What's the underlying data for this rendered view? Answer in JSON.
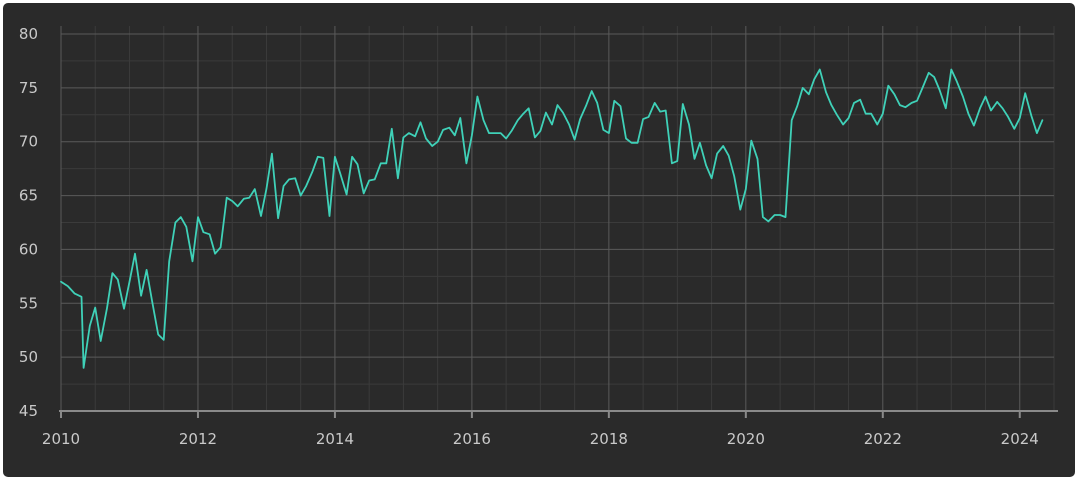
{
  "colors": {
    "background": "#2a2a2a",
    "line": "#3fd1b8",
    "grid": "#5a5a5a",
    "grid_minor": "#3b3b3b",
    "axis": "#8a8a8a",
    "text": "#c9c9c9"
  },
  "chart_data": {
    "type": "line",
    "title": "",
    "xlabel": "",
    "ylabel": "",
    "grid": true,
    "legend": "none",
    "xlim": [
      2010,
      2024.5
    ],
    "ylim": [
      45,
      80
    ],
    "x_ticks": [
      {
        "value": 2010,
        "label": "2010"
      },
      {
        "value": 2012,
        "label": "2012"
      },
      {
        "value": 2014,
        "label": "2014"
      },
      {
        "value": 2016,
        "label": "2016"
      },
      {
        "value": 2018,
        "label": "2018"
      },
      {
        "value": 2020,
        "label": "2020"
      },
      {
        "value": 2022,
        "label": "2022"
      },
      {
        "value": 2024,
        "label": "2024"
      }
    ],
    "y_ticks": [
      {
        "value": 45,
        "label": "45"
      },
      {
        "value": 50,
        "label": "50"
      },
      {
        "value": 55,
        "label": "55"
      },
      {
        "value": 60,
        "label": "60"
      },
      {
        "value": 65,
        "label": "65"
      },
      {
        "value": 70,
        "label": "70"
      },
      {
        "value": 75,
        "label": "75"
      },
      {
        "value": 80,
        "label": "80"
      }
    ],
    "series": [
      {
        "points": [
          [
            2010.0,
            57.0
          ],
          [
            2010.1,
            56.6
          ],
          [
            2010.2,
            55.9
          ],
          [
            2010.3,
            55.6
          ],
          [
            2010.33,
            49.0
          ],
          [
            2010.42,
            52.9
          ],
          [
            2010.5,
            54.6
          ],
          [
            2010.58,
            51.5
          ],
          [
            2010.67,
            54.5
          ],
          [
            2010.75,
            57.8
          ],
          [
            2010.83,
            57.2
          ],
          [
            2010.92,
            54.5
          ],
          [
            2011.0,
            57.0
          ],
          [
            2011.08,
            59.6
          ],
          [
            2011.17,
            55.7
          ],
          [
            2011.25,
            58.1
          ],
          [
            2011.33,
            55.2
          ],
          [
            2011.42,
            52.1
          ],
          [
            2011.5,
            51.6
          ],
          [
            2011.58,
            58.9
          ],
          [
            2011.67,
            62.5
          ],
          [
            2011.75,
            63.0
          ],
          [
            2011.83,
            62.1
          ],
          [
            2011.92,
            58.9
          ],
          [
            2012.0,
            63.0
          ],
          [
            2012.08,
            61.6
          ],
          [
            2012.17,
            61.4
          ],
          [
            2012.25,
            59.6
          ],
          [
            2012.33,
            60.2
          ],
          [
            2012.42,
            64.8
          ],
          [
            2012.5,
            64.5
          ],
          [
            2012.58,
            64.0
          ],
          [
            2012.67,
            64.7
          ],
          [
            2012.75,
            64.8
          ],
          [
            2012.83,
            65.6
          ],
          [
            2012.92,
            63.1
          ],
          [
            2013.0,
            65.6
          ],
          [
            2013.08,
            68.9
          ],
          [
            2013.17,
            62.9
          ],
          [
            2013.25,
            65.9
          ],
          [
            2013.33,
            66.5
          ],
          [
            2013.42,
            66.6
          ],
          [
            2013.5,
            65.0
          ],
          [
            2013.58,
            65.9
          ],
          [
            2013.67,
            67.2
          ],
          [
            2013.75,
            68.6
          ],
          [
            2013.83,
            68.5
          ],
          [
            2013.92,
            63.1
          ],
          [
            2014.0,
            68.6
          ],
          [
            2014.08,
            67.0
          ],
          [
            2014.17,
            65.1
          ],
          [
            2014.25,
            68.6
          ],
          [
            2014.33,
            67.9
          ],
          [
            2014.42,
            65.2
          ],
          [
            2014.5,
            66.4
          ],
          [
            2014.58,
            66.5
          ],
          [
            2014.67,
            68.0
          ],
          [
            2014.75,
            68.0
          ],
          [
            2014.83,
            71.2
          ],
          [
            2014.92,
            66.6
          ],
          [
            2015.0,
            70.4
          ],
          [
            2015.08,
            70.8
          ],
          [
            2015.17,
            70.5
          ],
          [
            2015.25,
            71.8
          ],
          [
            2015.33,
            70.3
          ],
          [
            2015.42,
            69.6
          ],
          [
            2015.5,
            70.0
          ],
          [
            2015.58,
            71.1
          ],
          [
            2015.67,
            71.3
          ],
          [
            2015.75,
            70.6
          ],
          [
            2015.83,
            72.2
          ],
          [
            2015.92,
            68.0
          ],
          [
            2016.0,
            70.6
          ],
          [
            2016.08,
            74.2
          ],
          [
            2016.17,
            72.0
          ],
          [
            2016.25,
            70.8
          ],
          [
            2016.33,
            70.8
          ],
          [
            2016.42,
            70.8
          ],
          [
            2016.5,
            70.3
          ],
          [
            2016.58,
            71.0
          ],
          [
            2016.67,
            72.0
          ],
          [
            2016.75,
            72.6
          ],
          [
            2016.83,
            73.1
          ],
          [
            2016.92,
            70.4
          ],
          [
            2017.0,
            71.0
          ],
          [
            2017.08,
            72.7
          ],
          [
            2017.17,
            71.6
          ],
          [
            2017.25,
            73.4
          ],
          [
            2017.33,
            72.7
          ],
          [
            2017.42,
            71.6
          ],
          [
            2017.5,
            70.2
          ],
          [
            2017.58,
            72.1
          ],
          [
            2017.67,
            73.4
          ],
          [
            2017.75,
            74.7
          ],
          [
            2017.83,
            73.6
          ],
          [
            2017.92,
            71.1
          ],
          [
            2018.0,
            70.8
          ],
          [
            2018.08,
            73.8
          ],
          [
            2018.17,
            73.3
          ],
          [
            2018.25,
            70.3
          ],
          [
            2018.33,
            69.9
          ],
          [
            2018.42,
            69.9
          ],
          [
            2018.5,
            72.1
          ],
          [
            2018.58,
            72.3
          ],
          [
            2018.67,
            73.6
          ],
          [
            2018.75,
            72.8
          ],
          [
            2018.83,
            72.9
          ],
          [
            2018.92,
            68.0
          ],
          [
            2019.0,
            68.2
          ],
          [
            2019.08,
            73.5
          ],
          [
            2019.17,
            71.6
          ],
          [
            2019.25,
            68.4
          ],
          [
            2019.33,
            69.9
          ],
          [
            2019.42,
            67.8
          ],
          [
            2019.5,
            66.6
          ],
          [
            2019.58,
            68.9
          ],
          [
            2019.67,
            69.6
          ],
          [
            2019.75,
            68.7
          ],
          [
            2019.83,
            66.8
          ],
          [
            2019.92,
            63.7
          ],
          [
            2020.0,
            65.6
          ],
          [
            2020.08,
            70.1
          ],
          [
            2020.17,
            68.4
          ],
          [
            2020.25,
            63.0
          ],
          [
            2020.33,
            62.6
          ],
          [
            2020.42,
            63.2
          ],
          [
            2020.5,
            63.2
          ],
          [
            2020.58,
            63.0
          ],
          [
            2020.67,
            72.0
          ],
          [
            2020.75,
            73.3
          ],
          [
            2020.83,
            75.0
          ],
          [
            2020.92,
            74.4
          ],
          [
            2021.0,
            75.8
          ],
          [
            2021.08,
            76.7
          ],
          [
            2021.17,
            74.6
          ],
          [
            2021.25,
            73.4
          ],
          [
            2021.33,
            72.5
          ],
          [
            2021.42,
            71.6
          ],
          [
            2021.5,
            72.2
          ],
          [
            2021.58,
            73.6
          ],
          [
            2021.67,
            73.9
          ],
          [
            2021.75,
            72.6
          ],
          [
            2021.83,
            72.6
          ],
          [
            2021.92,
            71.6
          ],
          [
            2022.0,
            72.6
          ],
          [
            2022.08,
            75.2
          ],
          [
            2022.17,
            74.4
          ],
          [
            2022.25,
            73.4
          ],
          [
            2022.33,
            73.2
          ],
          [
            2022.42,
            73.6
          ],
          [
            2022.5,
            73.8
          ],
          [
            2022.58,
            75.0
          ],
          [
            2022.67,
            76.4
          ],
          [
            2022.75,
            76.0
          ],
          [
            2022.83,
            74.8
          ],
          [
            2022.92,
            73.1
          ],
          [
            2023.0,
            76.7
          ],
          [
            2023.08,
            75.6
          ],
          [
            2023.17,
            74.2
          ],
          [
            2023.25,
            72.6
          ],
          [
            2023.33,
            71.5
          ],
          [
            2023.42,
            73.1
          ],
          [
            2023.5,
            74.2
          ],
          [
            2023.58,
            72.9
          ],
          [
            2023.67,
            73.7
          ],
          [
            2023.75,
            73.1
          ],
          [
            2023.83,
            72.3
          ],
          [
            2023.92,
            71.2
          ],
          [
            2024.0,
            72.2
          ],
          [
            2024.08,
            74.5
          ],
          [
            2024.17,
            72.4
          ],
          [
            2024.25,
            70.8
          ],
          [
            2024.33,
            72.0
          ]
        ]
      }
    ]
  }
}
